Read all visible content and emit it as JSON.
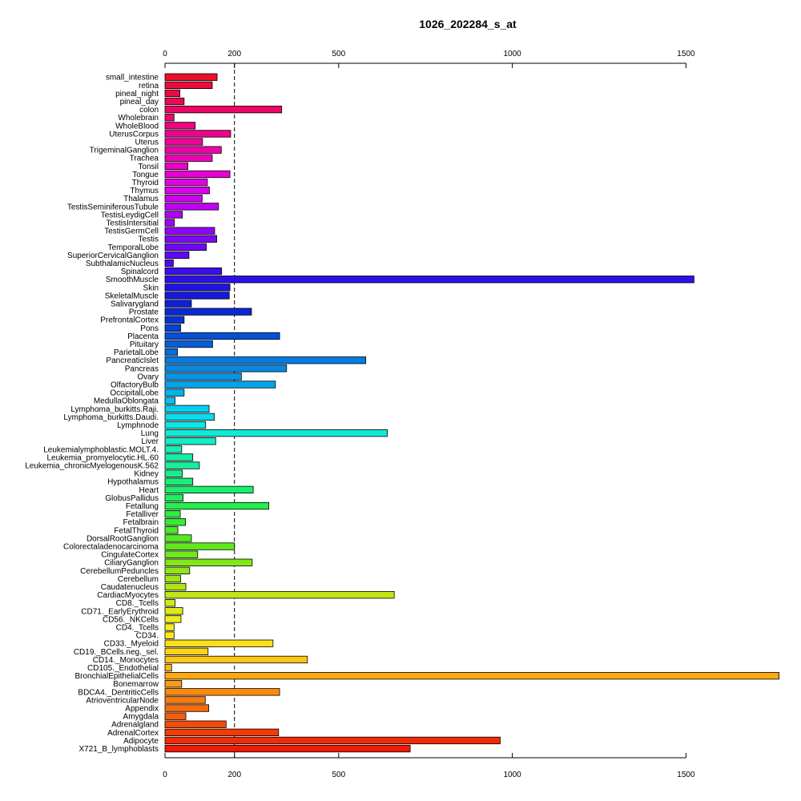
{
  "chart_data": {
    "type": "bar",
    "orientation": "horizontal",
    "title": "1026_202284_s_at",
    "xlabel": "",
    "ylabel": "",
    "xlim": [
      0,
      1770
    ],
    "ticks": [
      0,
      200,
      500,
      1000,
      1500
    ],
    "reference_line": 200,
    "categories": [
      "small_intestine",
      "retina",
      "pineal_night",
      "pineal_day",
      "colon",
      "Wholebrain",
      "WholeBlood",
      "UterusCorpus",
      "Uterus",
      "TrigeminalGanglion",
      "Trachea",
      "Tonsil",
      "Tongue",
      "Thyroid",
      "Thymus",
      "Thalamus",
      "TestisSeminiferousTubule",
      "TestisLeydigCell",
      "TestisIntersitial",
      "TestisGermCell",
      "Testis",
      "TemporalLobe",
      "SuperiorCervicalGanglion",
      "SubthalamicNucleus",
      "Spinalcord",
      "SmoothMuscle",
      "Skin",
      "SkeletalMuscle",
      "Salivarygland",
      "Prostate",
      "PrefrontalCortex",
      "Pons",
      "Placenta",
      "Pituitary",
      "ParietalLobe",
      "PancreaticIslet",
      "Pancreas",
      "Ovary",
      "OlfactoryBulb",
      "OccipitalLobe",
      "MedullaOblongata",
      "Lymphoma_burkitts.Raji.",
      "Lymphoma_burkitts.Daudi.",
      "Lymphnode",
      "Lung",
      "Liver",
      "Leukemialymphoblastic.MOLT.4.",
      "Leukemia_promyelocytic.HL.60",
      "Leukemia_chronicMyelogenousK.562",
      "Kidney",
      "Hypothalamus",
      "Heart",
      "GlobusPallidus",
      "Fetallung",
      "Fetalliver",
      "Fetalbrain",
      "FetalThyroid",
      "DorsalRootGanglion",
      "Colorectaladenocarcinoma",
      "CingulateCortex",
      "CiliaryGanglion",
      "CerebellumPeduncles",
      "Cerebellum",
      "Caudatenucleus",
      "CardiacMyocytes",
      "CD8._Tcells",
      "CD71._EarlyErythroid",
      "CD56._NKCells",
      "CD4._Tcells",
      "CD34.",
      "CD33._Myeloid",
      "CD19._BCells.neg._sel.",
      "CD14._Monocytes",
      "CD105._Endothelial",
      "BronchialEpithelialCells",
      "Bonemarrow",
      "BDCA4._DentriticCells",
      "AtrioventricularNode",
      "Appendix",
      "Amygdala",
      "Adrenalgland",
      "AdrenalCortex",
      "Adipocyte",
      "X721_B_lymphoblasts"
    ],
    "values": [
      150,
      136,
      43,
      55,
      336,
      26,
      87,
      189,
      108,
      162,
      136,
      66,
      187,
      122,
      128,
      107,
      154,
      50,
      27,
      143,
      149,
      119,
      69,
      24,
      163,
      1523,
      187,
      185,
      76,
      249,
      55,
      45,
      330,
      137,
      36,
      578,
      350,
      220,
      318,
      55,
      29,
      127,
      142,
      117,
      640,
      146,
      48,
      80,
      99,
      50,
      80,
      254,
      52,
      299,
      44,
      59,
      37,
      76,
      200,
      94,
      251,
      71,
      45,
      60,
      660,
      29,
      51,
      46,
      26,
      26,
      311,
      124,
      410,
      19,
      1768,
      48,
      330,
      116,
      126,
      60,
      176,
      327,
      965,
      706
    ],
    "colors": [
      "#e8102c",
      "#ea0c3a",
      "#eb0a48",
      "#ec0856",
      "#ed0664",
      "#ee0572",
      "#ef0480",
      "#f0038e",
      "#f0029c",
      "#f001aa",
      "#ee01b8",
      "#ec01c6",
      "#e801d4",
      "#e301e2",
      "#dd01ee",
      "#d001f2",
      "#c002f4",
      "#b003f5",
      "#a004f6",
      "#9005f6",
      "#8006f6",
      "#6f08f4",
      "#5e0af2",
      "#4d0cef",
      "#3c0eec",
      "#2b10e8",
      "#2012e4",
      "#1418e0",
      "#0c20dc",
      "#0828d8",
      "#0534d6",
      "#0442d8",
      "#0450da",
      "#045edc",
      "#046ddf",
      "#047be2",
      "#0489e5",
      "#0397e8",
      "#02a5eb",
      "#02b3ee",
      "#03c1f0",
      "#06cff0",
      "#0adcee",
      "#0ee6e4",
      "#12ead6",
      "#16ecc7",
      "#16edb8",
      "#16eea8",
      "#16ef99",
      "#16f08a",
      "#16f07a",
      "#18f06b",
      "#1cf05c",
      "#24ef4e",
      "#2cee40",
      "#36ed34",
      "#44ec2a",
      "#52eb22",
      "#60ea1c",
      "#70e918",
      "#80e816",
      "#90e716",
      "#a0e616",
      "#b0e616",
      "#c0e616",
      "#d0e816",
      "#e0ea18",
      "#eeec1a",
      "#f8ec1c",
      "#fde81c",
      "#fee01a",
      "#fed318",
      "#fec616",
      "#feb814",
      "#fda912",
      "#fc9a10",
      "#fb8a0e",
      "#fa7b0c",
      "#f96b0a",
      "#f75b08",
      "#f54b07",
      "#f33b06",
      "#f12b06",
      "#ee1a06"
    ]
  }
}
